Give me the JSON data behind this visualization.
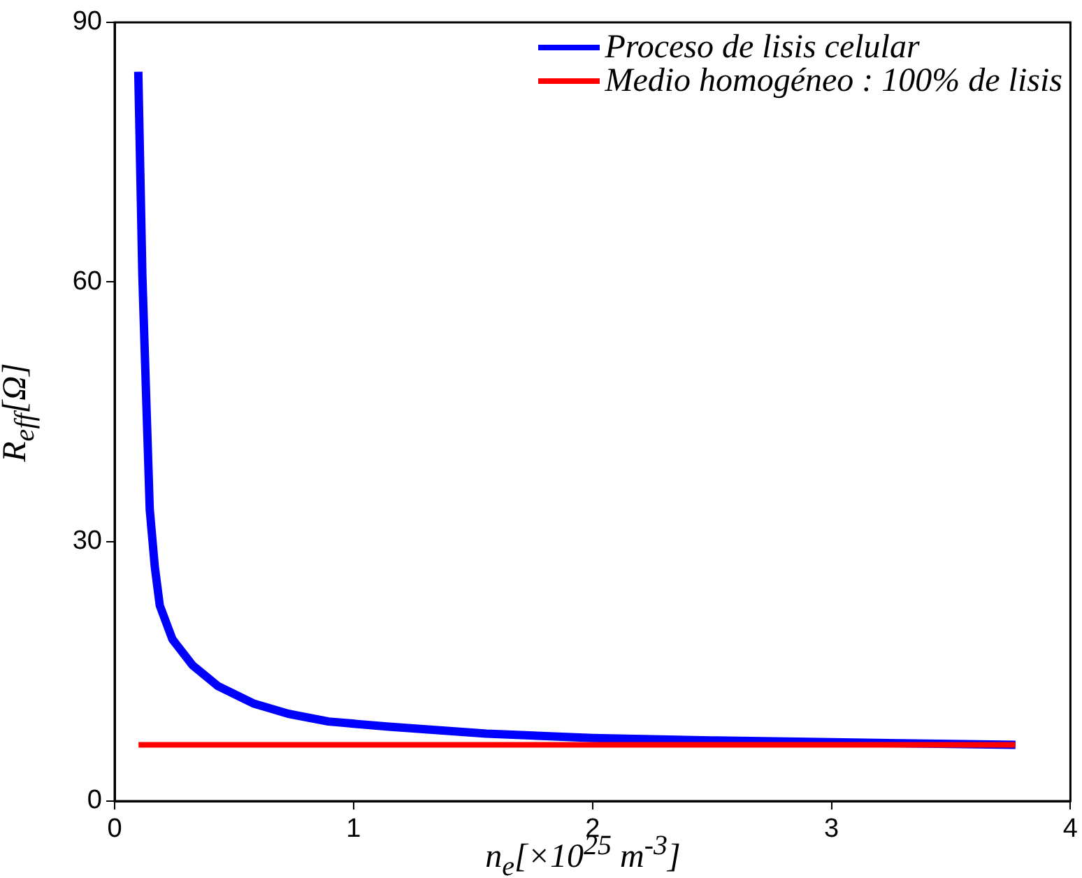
{
  "chart_data": {
    "type": "line",
    "xlabel": "n$_{e}$[×10$^{25}$ m$^{-3}$]",
    "ylabel": "R$_{eff}$[Ω]",
    "xlim": [
      0,
      4
    ],
    "xticks": [
      0,
      1,
      2,
      3,
      4
    ],
    "ylim": [
      0,
      90
    ],
    "yticks": [
      0,
      30,
      60,
      90
    ],
    "grid": false,
    "legend": "top right",
    "marker": "none",
    "line_style": "solid",
    "series": [
      {
        "name": "Proceso de lisis celular",
        "color": "#0000ff",
        "x": [
          0.099,
          0.116,
          0.133,
          0.147,
          0.168,
          0.189,
          0.242,
          0.326,
          0.432,
          0.58,
          0.726,
          0.895,
          0.977,
          1.147,
          1.556,
          2,
          2.52,
          3,
          3.77
        ],
        "values": [
          84.3,
          60.8,
          45.8,
          33.7,
          27.1,
          22.6,
          18.7,
          15.7,
          13.3,
          11.3,
          10.1,
          9.2,
          9.0,
          8.6,
          7.8,
          7.3,
          7.0,
          6.8,
          6.5
        ]
      },
      {
        "name": "Medio homogéneo :  100% de lisis",
        "color": "#ff0000",
        "x": [
          0.1,
          3.77
        ],
        "values": [
          6.5,
          6.5
        ]
      }
    ]
  }
}
